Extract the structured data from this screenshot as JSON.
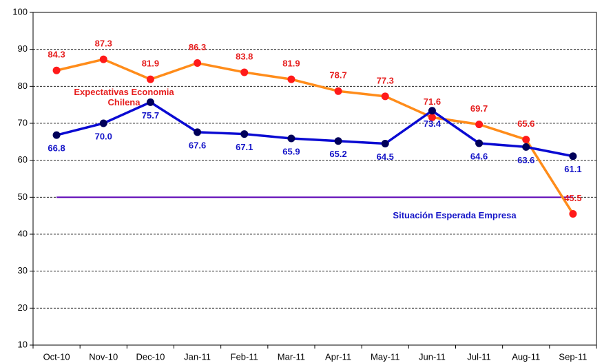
{
  "chart_data": {
    "type": "line",
    "categories": [
      "Oct-10",
      "Nov-10",
      "Dec-10",
      "Jan-11",
      "Feb-11",
      "Mar-11",
      "Apr-11",
      "May-11",
      "Jun-11",
      "Jul-11",
      "Aug-11",
      "Sep-11"
    ],
    "series": [
      {
        "name": "Expectativas Economia Chilena",
        "color": "#ff8c1a",
        "marker_color": "#ff1a1a",
        "label_color": "#e61e1e",
        "values": [
          84.3,
          87.3,
          81.9,
          86.3,
          83.8,
          81.9,
          78.7,
          77.3,
          71.6,
          69.7,
          65.6,
          45.5
        ],
        "value_labels": [
          "84.3",
          "87.3",
          "81.9",
          "86.3",
          "83.8",
          "81.9",
          "78.7",
          "77.3",
          "71.6",
          "69.7",
          "65.6",
          "45.5"
        ]
      },
      {
        "name": "Situación Esperada Empresa",
        "color": "#0a0ad2",
        "marker_color": "#00005a",
        "label_color": "#1414c8",
        "values": [
          66.8,
          70.0,
          75.7,
          67.6,
          67.1,
          65.9,
          65.2,
          64.5,
          73.4,
          64.6,
          63.6,
          61.1
        ],
        "value_labels": [
          "66.8",
          "70.0",
          "75.7",
          "67.6",
          "67.1",
          "65.9",
          "65.2",
          "64.5",
          "73.4",
          "64.6",
          "63.6",
          "61.1"
        ]
      }
    ],
    "reference_line": {
      "value": 50,
      "color": "#5a00b4"
    },
    "ylim": [
      10,
      100
    ],
    "yticks": [
      10,
      20,
      30,
      40,
      50,
      60,
      70,
      80,
      90,
      100
    ],
    "grid": true
  }
}
